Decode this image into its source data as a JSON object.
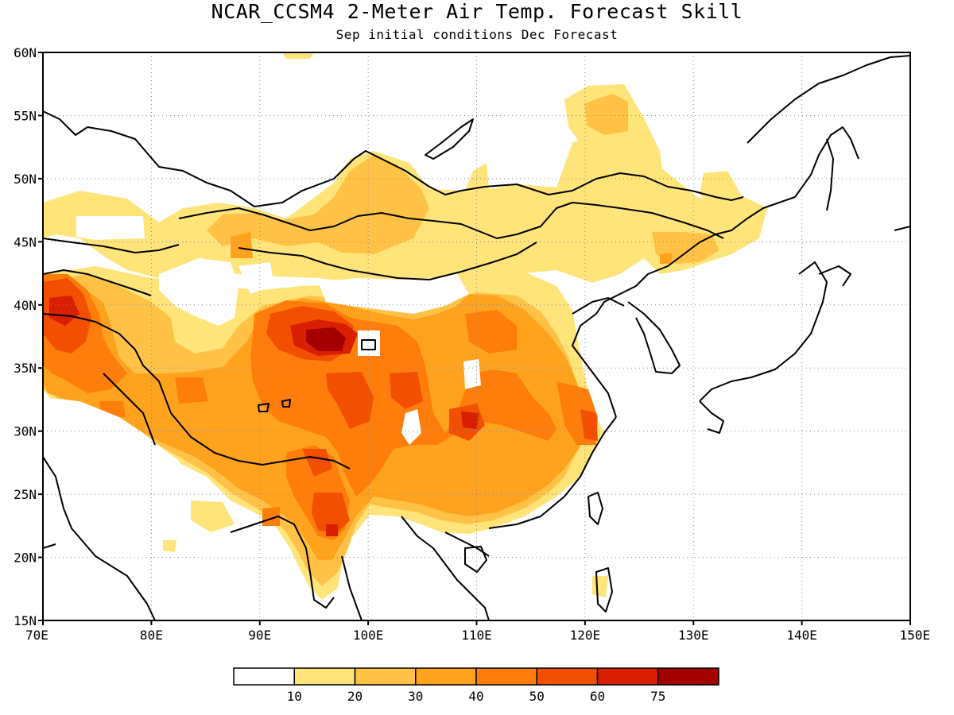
{
  "title": "NCAR_CCSM4 2-Meter Air Temp. Forecast Skill",
  "subtitle": "Sep initial conditions  Dec Forecast",
  "map": {
    "lon_range": [
      70,
      150
    ],
    "lat_range": [
      15,
      60
    ],
    "lon_ticks": [
      "70E",
      "80E",
      "90E",
      "100E",
      "110E",
      "120E",
      "130E",
      "140E",
      "150E"
    ],
    "lat_ticks": [
      "15N",
      "20N",
      "25N",
      "30N",
      "35N",
      "40N",
      "45N",
      "50N",
      "55N",
      "60N"
    ],
    "gridlines": "dotted"
  },
  "colorbar": {
    "colors": [
      "#ffffff",
      "#ffe47a",
      "#ffc247",
      "#ffa31f",
      "#ff7d0a",
      "#f24f00",
      "#d81f00",
      "#a50000"
    ],
    "labels": [
      "10",
      "20",
      "30",
      "40",
      "50",
      "60",
      "75"
    ]
  }
}
